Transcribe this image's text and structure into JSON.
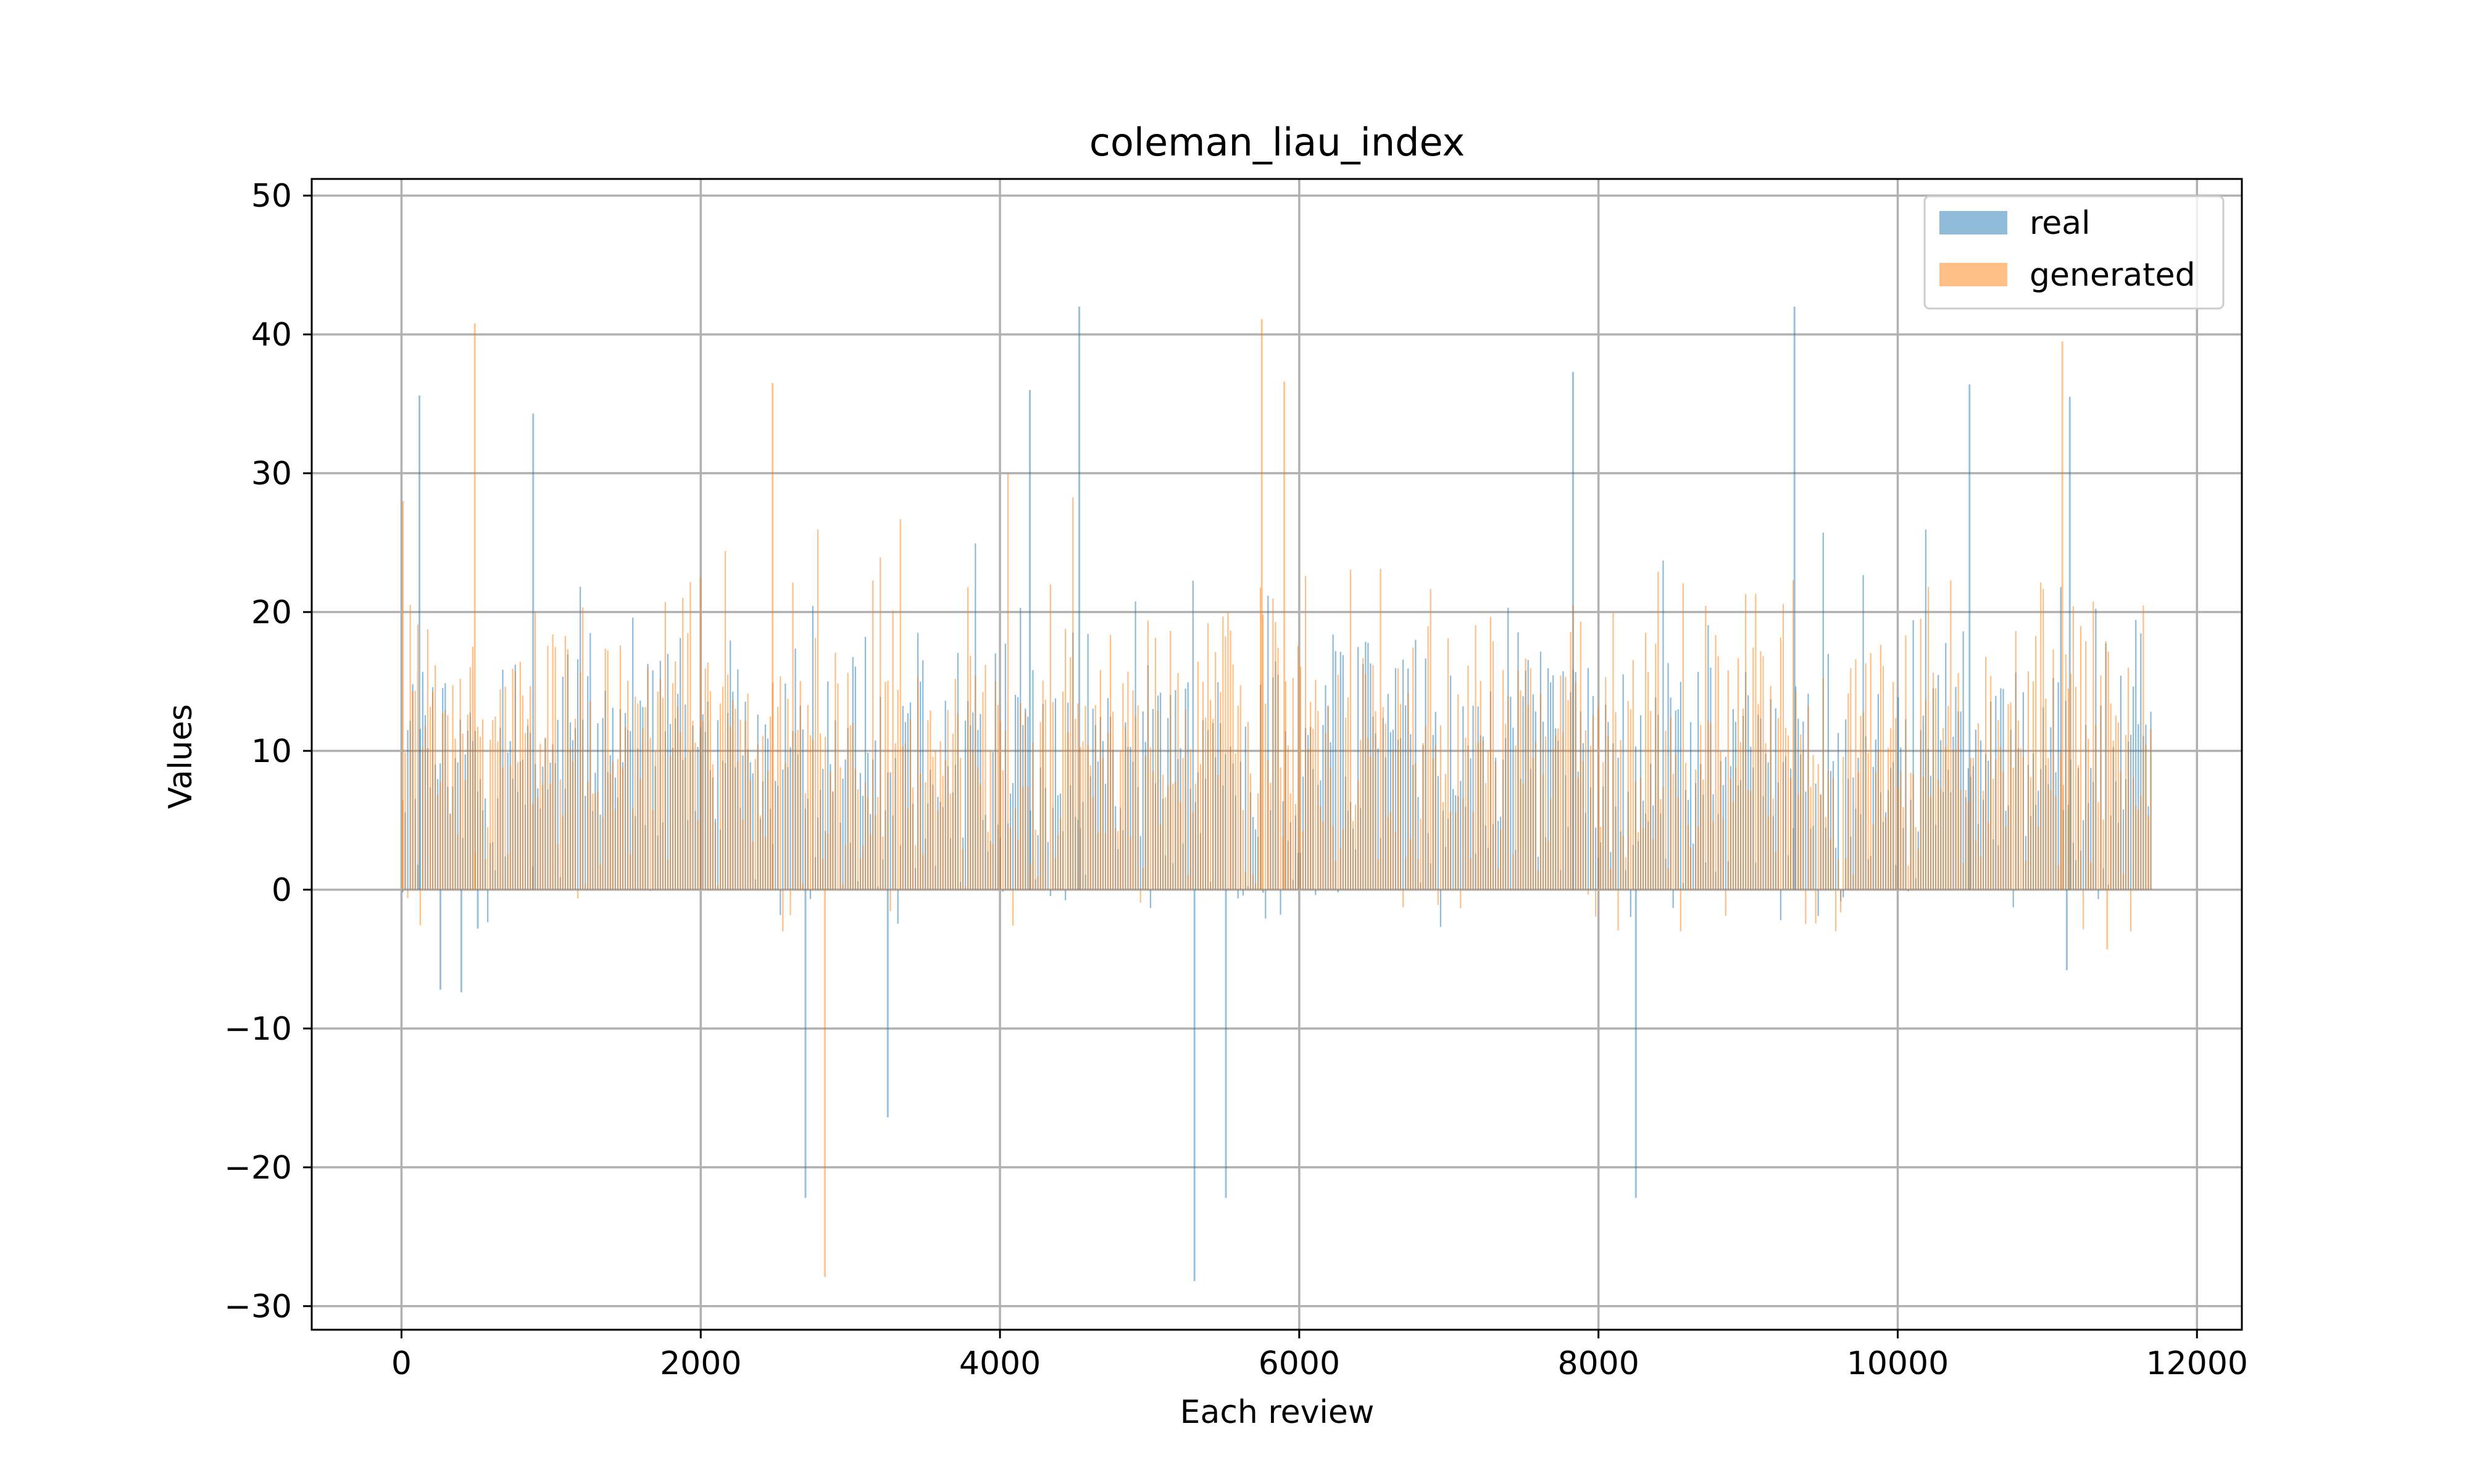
{
  "chart_data": {
    "type": "bar",
    "title": "coleman_liau_index",
    "xlabel": "Each review",
    "ylabel": "Values",
    "xlim": [
      -600,
      12300
    ],
    "ylim": [
      -31.7,
      51.2
    ],
    "x_ticks": [
      0,
      2000,
      4000,
      6000,
      8000,
      10000,
      12000
    ],
    "x_tick_labels": [
      "0",
      "2000",
      "4000",
      "6000",
      "8000",
      "10000",
      "12000"
    ],
    "y_ticks": [
      -30,
      -20,
      -10,
      0,
      10,
      20,
      30,
      40,
      50
    ],
    "y_tick_labels": [
      "−30",
      "−20",
      "−10",
      "0",
      "10",
      "20",
      "30",
      "40",
      "50"
    ],
    "grid": true,
    "legend_position": "top-right",
    "series_count": 11700,
    "series": [
      {
        "name": "real",
        "color": "#1f77b4",
        "alpha": 0.5,
        "typical_range": [
          0,
          16
        ],
        "notable_values": [
          {
            "x": 120,
            "y": 35.6
          },
          {
            "x": 260,
            "y": -7.2
          },
          {
            "x": 400,
            "y": -7.4
          },
          {
            "x": 510,
            "y": -2.8
          },
          {
            "x": 880,
            "y": 34.3
          },
          {
            "x": 2700,
            "y": -22.2
          },
          {
            "x": 3250,
            "y": -16.4
          },
          {
            "x": 4200,
            "y": 36.0
          },
          {
            "x": 4530,
            "y": 42.0
          },
          {
            "x": 5300,
            "y": -28.2
          },
          {
            "x": 5510,
            "y": -22.2
          },
          {
            "x": 7830,
            "y": 37.3
          },
          {
            "x": 8250,
            "y": -22.2
          },
          {
            "x": 9310,
            "y": 42.0
          },
          {
            "x": 10480,
            "y": 36.4
          },
          {
            "x": 11150,
            "y": 35.5
          },
          {
            "x": 11130,
            "y": -5.8
          }
        ]
      },
      {
        "name": "generated",
        "color": "#ff7f0e",
        "alpha": 0.5,
        "typical_range": [
          0,
          18
        ],
        "notable_values": [
          {
            "x": 10,
            "y": 28.0
          },
          {
            "x": 490,
            "y": 40.8
          },
          {
            "x": 2480,
            "y": 36.5
          },
          {
            "x": 2830,
            "y": -27.9
          },
          {
            "x": 5750,
            "y": 41.1
          },
          {
            "x": 5900,
            "y": 36.6
          },
          {
            "x": 11100,
            "y": 39.5
          },
          {
            "x": 11400,
            "y": -4.3
          }
        ]
      }
    ]
  }
}
